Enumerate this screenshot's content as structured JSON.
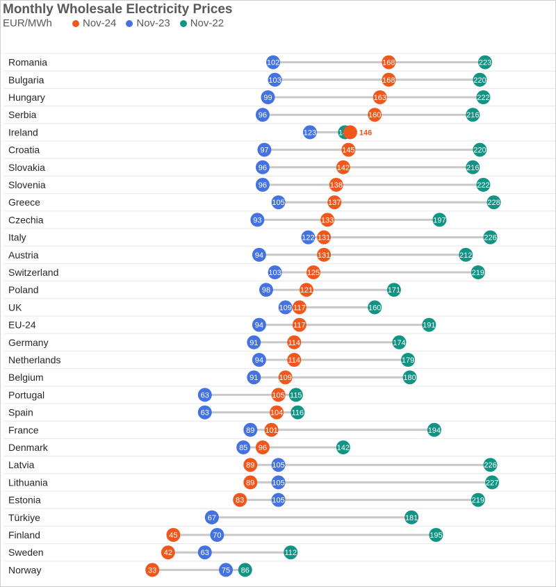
{
  "chart_data": {
    "type": "dumbbell",
    "title": "Monthly Wholesale Electricity Prices",
    "unit": "EUR/MWh",
    "series": [
      {
        "name": "Nov-24",
        "color": "#F0571D"
      },
      {
        "name": "Nov-23",
        "color": "#4472E0"
      },
      {
        "name": "Nov-22",
        "color": "#119483"
      }
    ],
    "rows": [
      {
        "country": "Romania",
        "nov24": 168,
        "nov23": 102,
        "nov22": 223
      },
      {
        "country": "Bulgaria",
        "nov24": 168,
        "nov23": 103,
        "nov22": 220
      },
      {
        "country": "Hungary",
        "nov24": 163,
        "nov23": 99,
        "nov22": 222
      },
      {
        "country": "Serbia",
        "nov24": 160,
        "nov23": 96,
        "nov22": 216
      },
      {
        "country": "Ireland",
        "nov24": 146,
        "nov23": 123,
        "nov22": 143
      },
      {
        "country": "Croatia",
        "nov24": 145,
        "nov23": 97,
        "nov22": 220
      },
      {
        "country": "Slovakia",
        "nov24": 142,
        "nov23": 96,
        "nov22": 216
      },
      {
        "country": "Slovenia",
        "nov24": 138,
        "nov23": 96,
        "nov22": 222
      },
      {
        "country": "Greece",
        "nov24": 137,
        "nov23": 105,
        "nov22": 228
      },
      {
        "country": "Czechia",
        "nov24": 133,
        "nov23": 93,
        "nov22": 197
      },
      {
        "country": "Italy",
        "nov24": 131,
        "nov23": 122,
        "nov22": 226
      },
      {
        "country": "Austria",
        "nov24": 131,
        "nov23": 94,
        "nov22": 212
      },
      {
        "country": "Switzerland",
        "nov24": 125,
        "nov23": 103,
        "nov22": 219
      },
      {
        "country": "Poland",
        "nov24": 121,
        "nov23": 98,
        "nov22": 171
      },
      {
        "country": "UK",
        "nov24": 117,
        "nov23": 109,
        "nov22": 160
      },
      {
        "country": "EU-24",
        "nov24": 117,
        "nov23": 94,
        "nov22": 191
      },
      {
        "country": "Germany",
        "nov24": 114,
        "nov23": 91,
        "nov22": 174
      },
      {
        "country": "Netherlands",
        "nov24": 114,
        "nov23": 94,
        "nov22": 179
      },
      {
        "country": "Belgium",
        "nov24": 109,
        "nov23": 91,
        "nov22": 180
      },
      {
        "country": "Portugal",
        "nov24": 105,
        "nov23": 63,
        "nov22": 115
      },
      {
        "country": "Spain",
        "nov24": 104,
        "nov23": 63,
        "nov22": 116
      },
      {
        "country": "France",
        "nov24": 101,
        "nov23": 89,
        "nov22": 194
      },
      {
        "country": "Denmark",
        "nov24": 96,
        "nov23": 85,
        "nov22": 142
      },
      {
        "country": "Latvia",
        "nov24": 89,
        "nov23": 105,
        "nov22": 226
      },
      {
        "country": "Lithuania",
        "nov24": 89,
        "nov23": 105,
        "nov22": 227
      },
      {
        "country": "Estonia",
        "nov24": 83,
        "nov23": 105,
        "nov22": 219
      },
      {
        "country": "Türkiye",
        "nov24": 67,
        "nov23": 67,
        "nov22": 181
      },
      {
        "country": "Finland",
        "nov24": 45,
        "nov23": 70,
        "nov22": 195
      },
      {
        "country": "Sweden",
        "nov24": 42,
        "nov23": 63,
        "nov22": 112
      },
      {
        "country": "Norway",
        "nov24": 33,
        "nov23": 75,
        "nov22": 86
      }
    ],
    "external_labels": [
      {
        "country": "Ireland",
        "series": "Nov-24",
        "text": "146"
      }
    ],
    "xlim": [
      0,
      240
    ],
    "grid": false
  }
}
